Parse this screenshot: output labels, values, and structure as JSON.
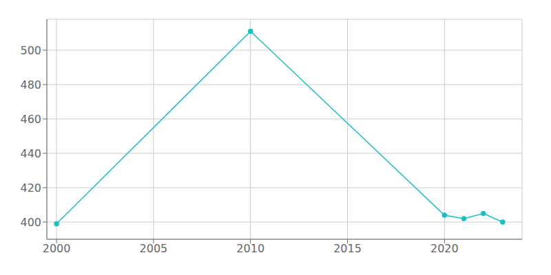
{
  "chart_data": {
    "type": "line",
    "x": [
      2000,
      2010,
      2020,
      2021,
      2022,
      2023
    ],
    "values": [
      399,
      511,
      404,
      402,
      405,
      400
    ],
    "color": "#1abfbf",
    "marker": "circle",
    "xlim": [
      1999.5,
      2024
    ],
    "ylim": [
      390,
      518
    ],
    "xticks": [
      2000,
      2005,
      2010,
      2015,
      2020
    ],
    "yticks": [
      400,
      420,
      440,
      460,
      480,
      500
    ],
    "grid": true
  }
}
